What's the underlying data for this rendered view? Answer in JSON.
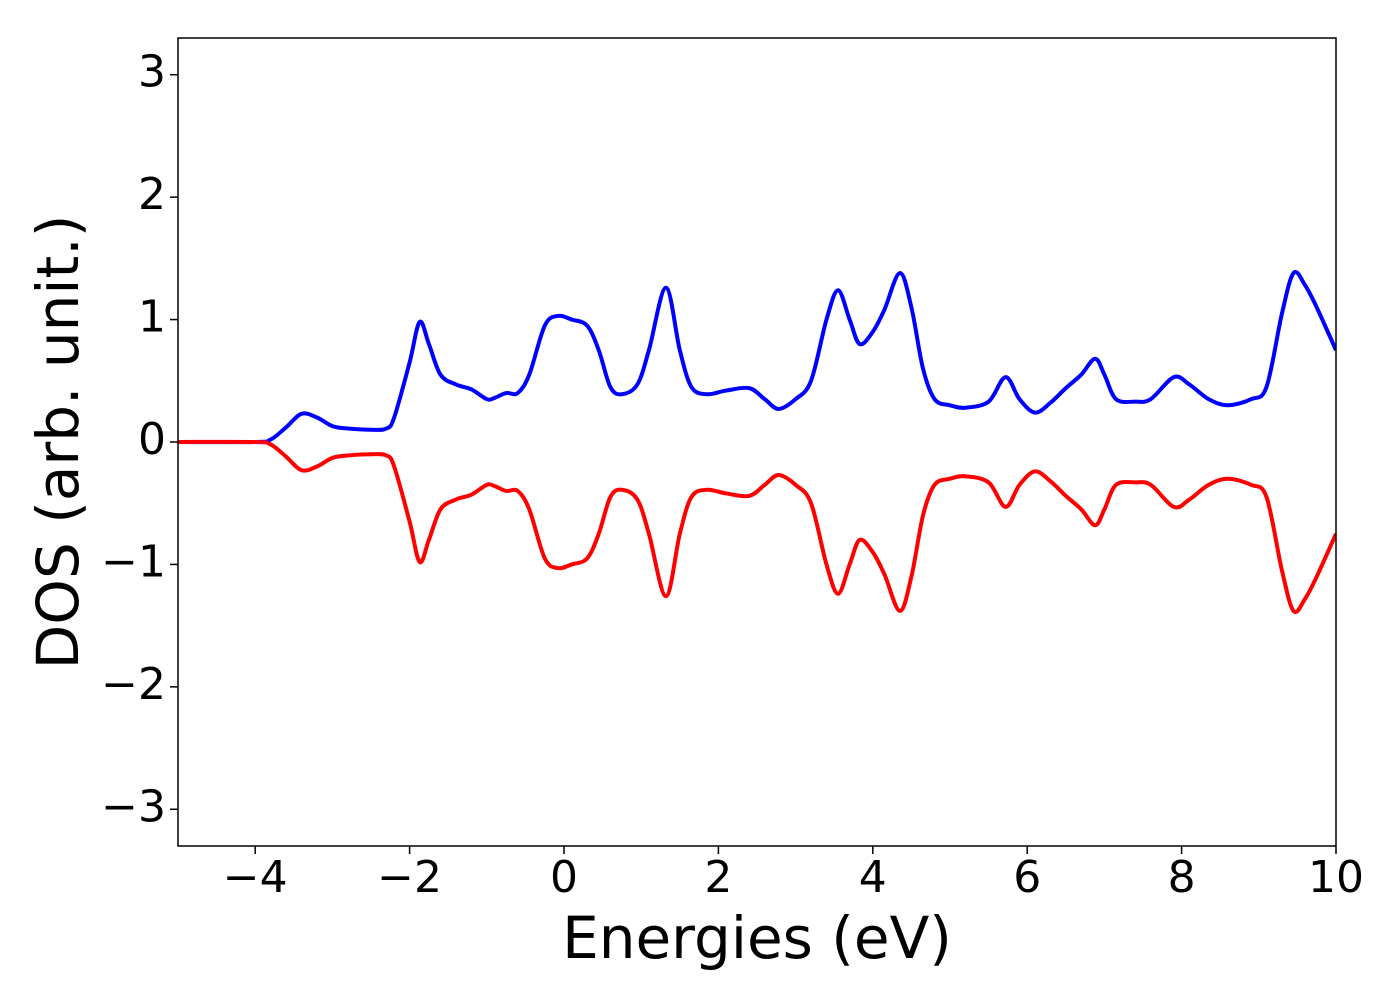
{
  "chart_data": {
    "type": "line",
    "xlabel": "Energies (eV)",
    "ylabel": "DOS (arb. unit.)",
    "x": [
      -5,
      -4,
      -3.8,
      -3.6,
      -3.4,
      -3.2,
      -3.0,
      -2.8,
      -2.5,
      -2.3,
      -2.2,
      -2.0,
      -1.87,
      -1.75,
      -1.6,
      -1.4,
      -1.2,
      -1.0,
      -0.9,
      -0.75,
      -0.6,
      -0.45,
      -0.25,
      -0.08,
      0.1,
      0.3,
      0.45,
      0.6,
      0.75,
      0.95,
      1.1,
      1.32,
      1.5,
      1.65,
      1.85,
      2.1,
      2.4,
      2.6,
      2.78,
      3.0,
      3.2,
      3.4,
      3.55,
      3.7,
      3.83,
      4.0,
      4.15,
      4.35,
      4.5,
      4.65,
      4.8,
      5.0,
      5.2,
      5.5,
      5.72,
      5.9,
      6.1,
      6.3,
      6.5,
      6.7,
      6.88,
      7.0,
      7.15,
      7.4,
      7.6,
      7.9,
      8.1,
      8.35,
      8.6,
      8.9,
      9.1,
      9.3,
      9.45,
      9.6,
      9.75,
      10
    ],
    "series": [
      {
        "color": "#0000ff",
        "values": [
          0,
          0,
          0.02,
          0.12,
          0.23,
          0.2,
          0.13,
          0.11,
          0.1,
          0.11,
          0.2,
          0.65,
          0.98,
          0.8,
          0.55,
          0.47,
          0.43,
          0.35,
          0.36,
          0.4,
          0.4,
          0.55,
          0.95,
          1.03,
          1.0,
          0.95,
          0.75,
          0.45,
          0.39,
          0.47,
          0.75,
          1.26,
          0.75,
          0.45,
          0.39,
          0.42,
          0.44,
          0.35,
          0.27,
          0.35,
          0.5,
          1.0,
          1.24,
          1.0,
          0.8,
          0.9,
          1.08,
          1.38,
          1.1,
          0.6,
          0.35,
          0.3,
          0.28,
          0.33,
          0.53,
          0.35,
          0.24,
          0.32,
          0.44,
          0.55,
          0.68,
          0.55,
          0.35,
          0.33,
          0.35,
          0.53,
          0.47,
          0.35,
          0.3,
          0.35,
          0.45,
          1.05,
          1.38,
          1.28,
          1.1,
          0.75
        ]
      },
      {
        "color": "#ff0000",
        "values": [
          0,
          0,
          -0.02,
          -0.12,
          -0.23,
          -0.2,
          -0.13,
          -0.11,
          -0.1,
          -0.11,
          -0.2,
          -0.65,
          -0.98,
          -0.8,
          -0.55,
          -0.47,
          -0.43,
          -0.35,
          -0.36,
          -0.4,
          -0.4,
          -0.55,
          -0.95,
          -1.03,
          -1.0,
          -0.95,
          -0.75,
          -0.45,
          -0.39,
          -0.47,
          -0.75,
          -1.26,
          -0.75,
          -0.45,
          -0.39,
          -0.42,
          -0.44,
          -0.35,
          -0.27,
          -0.35,
          -0.5,
          -1.0,
          -1.24,
          -1.0,
          -0.8,
          -0.9,
          -1.08,
          -1.38,
          -1.1,
          -0.6,
          -0.35,
          -0.3,
          -0.28,
          -0.33,
          -0.53,
          -0.35,
          -0.24,
          -0.32,
          -0.44,
          -0.55,
          -0.68,
          -0.55,
          -0.35,
          -0.33,
          -0.35,
          -0.53,
          -0.47,
          -0.35,
          -0.3,
          -0.35,
          -0.45,
          -1.05,
          -1.38,
          -1.28,
          -1.1,
          -0.75
        ]
      }
    ],
    "xlim": [
      -5,
      10
    ],
    "xticks": [
      {
        "value": -4,
        "label": "−4"
      },
      {
        "value": -2,
        "label": "−2"
      },
      0,
      2,
      4,
      6,
      8,
      10
    ],
    "ylim": [
      -3.3,
      3.3
    ],
    "yticks": [
      {
        "value": -3,
        "label": "−3"
      },
      {
        "value": -2,
        "label": "−2"
      },
      {
        "value": -1,
        "label": "−1"
      },
      0,
      1,
      2,
      3
    ],
    "grid": false
  }
}
